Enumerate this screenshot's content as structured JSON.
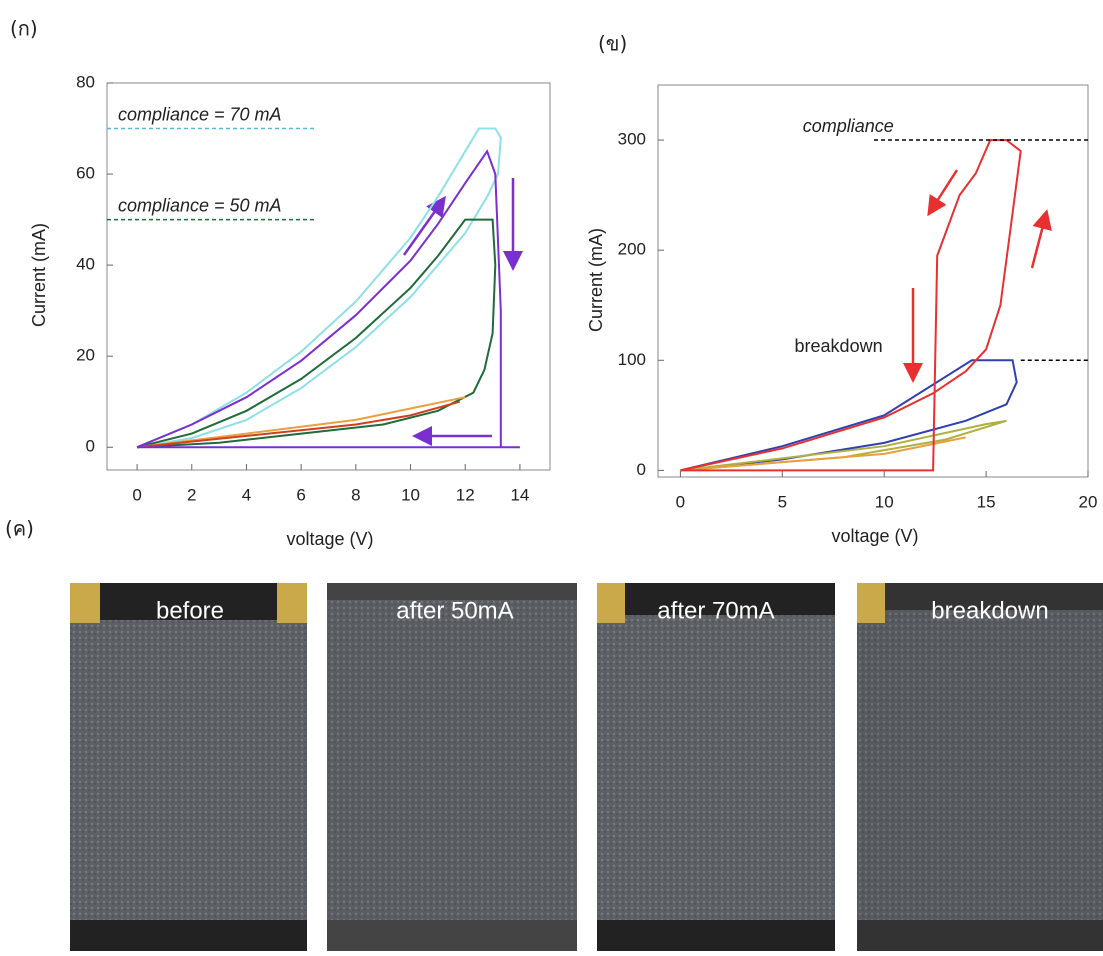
{
  "chart_data": [
    {
      "type": "line",
      "panel": "(ก)",
      "x_label": "voltage (V)",
      "y_label": "Current (mA)",
      "xlim": [
        -1.1,
        15.1
      ],
      "ylim": [
        -5,
        80
      ],
      "xticks": [
        0,
        2,
        4,
        6,
        8,
        10,
        12,
        14
      ],
      "yticks": [
        0,
        20,
        40,
        60,
        80
      ],
      "annotations": [
        {
          "text": "compliance = 70 mA",
          "x": -0.7,
          "y": 70,
          "from": -1.1,
          "to": 6.5,
          "color": "#5ab8d8",
          "italic": true
        },
        {
          "text": "compliance = 50 mA",
          "x": -0.7,
          "y": 50,
          "from": -1.1,
          "to": 6.5,
          "color": "#1f6b3a",
          "italic": true
        }
      ],
      "series": [
        {
          "color": "#8ee0e8",
          "x": [
            0,
            2,
            4,
            6,
            8,
            10,
            11,
            12,
            12.5,
            13.1,
            13.3,
            13.2,
            12.8,
            12,
            10,
            8,
            6,
            4,
            2,
            0
          ],
          "values": [
            0,
            5,
            12,
            21,
            32,
            46,
            55,
            65,
            70,
            70,
            68,
            60,
            55,
            47,
            33,
            22,
            13,
            6,
            2,
            0
          ]
        },
        {
          "color": "#1f6b3a",
          "x": [
            0,
            2,
            4,
            6,
            8,
            10,
            11,
            12,
            13,
            13.1,
            13,
            12.7,
            12.3,
            11,
            9,
            6,
            3,
            0
          ],
          "values": [
            0,
            3,
            8,
            15,
            24,
            35,
            42,
            50,
            50,
            40,
            25,
            17,
            12,
            8,
            5,
            3,
            1,
            0
          ]
        },
        {
          "color": "#e8a040",
          "x": [
            0,
            4,
            8,
            10,
            12
          ],
          "values": [
            0,
            3,
            6,
            8.5,
            11
          ]
        },
        {
          "color": "#d04020",
          "x": [
            0,
            4,
            8,
            10,
            11.8
          ],
          "values": [
            0,
            2.5,
            5,
            7,
            10
          ]
        },
        {
          "color": "#7a2fd0",
          "x": [
            0,
            2,
            4,
            6,
            8,
            10,
            11,
            12,
            12.8,
            13.1,
            13.3,
            13.3,
            14,
            0
          ],
          "values": [
            0,
            5,
            11,
            19,
            29,
            41,
            49,
            58,
            65,
            60,
            30,
            0,
            0,
            0
          ]
        }
      ]
    },
    {
      "type": "line",
      "panel": "(ข)",
      "x_label": "voltage (V)",
      "y_label": "Current (mA)",
      "xlim": [
        -1.1,
        20
      ],
      "ylim": [
        -6,
        350
      ],
      "xticks": [
        0,
        5,
        10,
        15,
        20
      ],
      "yticks": [
        0,
        100,
        200,
        300
      ],
      "annotations": [
        {
          "text": "compliance",
          "x": 6,
          "y": 300,
          "from": 9.5,
          "to": 20,
          "color": "#000000",
          "italic": true
        },
        {
          "text": "breakdown",
          "x": 5.6,
          "y": 100,
          "from": 16.7,
          "to": 20,
          "color": "#000000",
          "italic": false
        }
      ],
      "series": [
        {
          "color": "#3040b0",
          "x": [
            0,
            5,
            10,
            14.3,
            16.3,
            16.5,
            16,
            14,
            10,
            5,
            0
          ],
          "values": [
            0,
            22,
            50,
            100,
            100,
            80,
            60,
            45,
            25,
            10,
            0
          ]
        },
        {
          "color": "#b0b040",
          "x": [
            0,
            8,
            13,
            16,
            15,
            10,
            0
          ],
          "values": [
            0,
            12,
            28,
            45,
            42,
            22,
            0
          ]
        },
        {
          "color": "#e8a040",
          "x": [
            0,
            10,
            14
          ],
          "values": [
            0,
            15,
            30
          ]
        },
        {
          "color": "#e83030",
          "x": [
            0,
            5,
            10,
            12.4,
            14,
            15,
            15.7,
            16.2,
            16.7,
            16,
            15.2,
            14.5,
            13.7,
            12.6,
            12.4,
            0
          ],
          "values": [
            0,
            20,
            48,
            70,
            90,
            110,
            150,
            220,
            290,
            300,
            300,
            270,
            250,
            195,
            0,
            0
          ]
        }
      ]
    }
  ],
  "photos": {
    "panel": "(ค)",
    "labels": [
      "before",
      "after 50mA",
      "after 70mA",
      "breakdown"
    ]
  }
}
